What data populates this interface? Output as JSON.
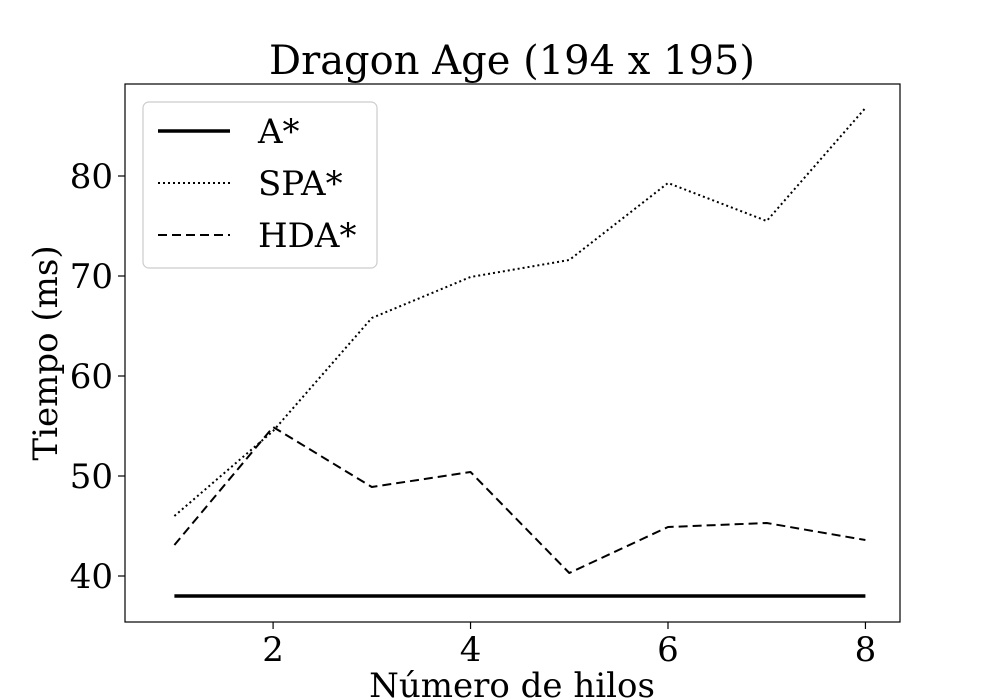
{
  "chart_data": {
    "type": "line",
    "title": "Dragon Age (194 x 195)",
    "xlabel": "Número de hilos",
    "ylabel": "Tiempo (ms)",
    "x": [
      1,
      2,
      3,
      4,
      5,
      6,
      7,
      8
    ],
    "xlim": [
      0.5,
      8.35
    ],
    "ylim": [
      35.4,
      89.2
    ],
    "xticks": [
      2,
      4,
      6,
      8
    ],
    "yticks": [
      40,
      50,
      60,
      70,
      80
    ],
    "grid": false,
    "legend_position": "top-left",
    "series": [
      {
        "name": "A*",
        "style": "solid",
        "color": "#000000",
        "values": [
          38.0,
          38.0,
          38.0,
          38.0,
          38.0,
          38.0,
          38.0,
          38.0
        ]
      },
      {
        "name": "SPA*",
        "style": "dotted",
        "color": "#000000",
        "values": [
          46.0,
          54.5,
          65.8,
          69.9,
          71.6,
          79.3,
          75.5,
          86.8
        ]
      },
      {
        "name": "HDA*",
        "style": "dashed",
        "color": "#000000",
        "values": [
          43.1,
          54.9,
          48.9,
          50.4,
          40.3,
          44.9,
          45.3,
          43.6
        ]
      }
    ]
  }
}
